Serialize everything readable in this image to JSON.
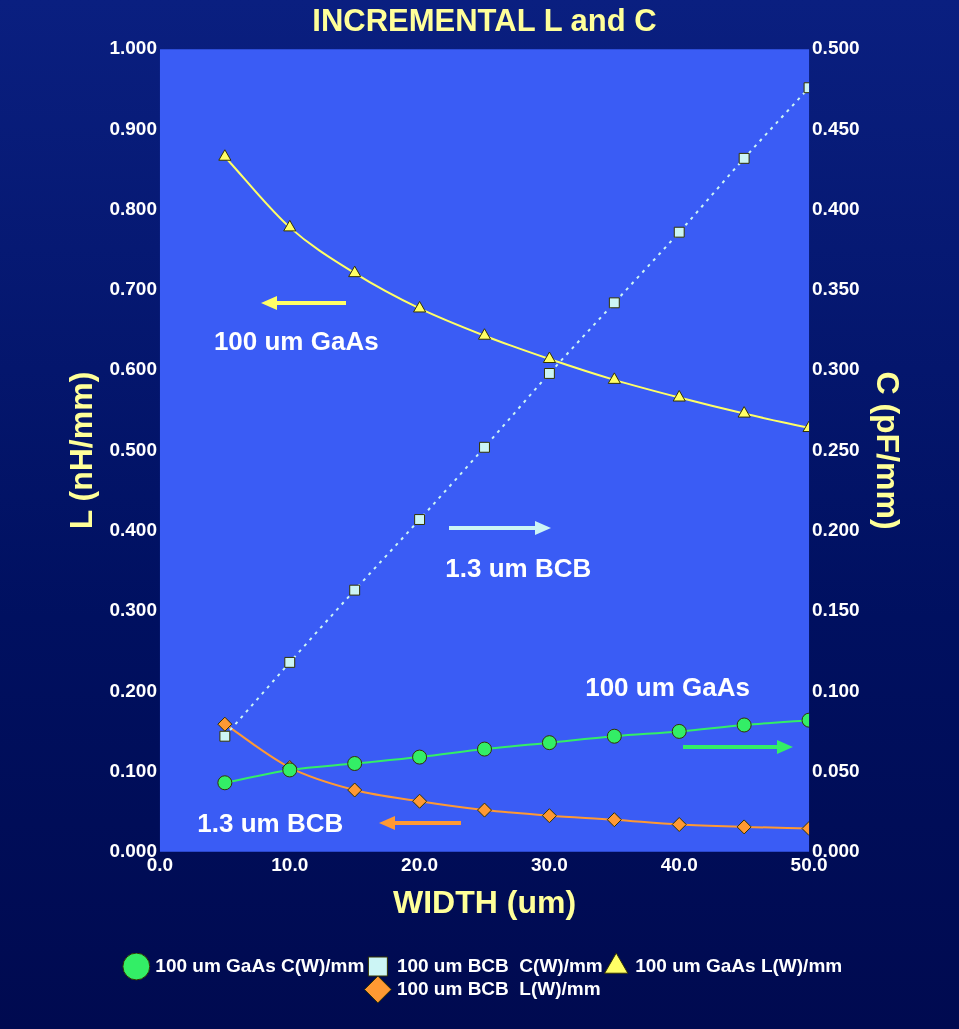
{
  "chart_data": {
    "type": "line",
    "title": "INCREMENTAL L and C",
    "xlabel": "WIDTH (um)",
    "ylabel": "L (nH/mm)",
    "y2label": "C (pF/mm)",
    "x": [
      5,
      10,
      15,
      20,
      25,
      30,
      35,
      40,
      45,
      50
    ],
    "series": [
      {
        "name": "100 um GaAs L(W)/mm",
        "color": "#ffff66",
        "marker": "triangle",
        "line_style": "solid",
        "values": [
          0.866,
          0.778,
          0.721,
          0.677,
          0.643,
          0.614,
          0.588,
          0.566,
          0.546,
          0.528
        ]
      },
      {
        "name": "100 um BCB  L(W)/mm",
        "color": "#ff9933",
        "marker": "diamond",
        "line_style": "solid",
        "values": [
          0.159,
          0.105,
          0.077,
          0.063,
          0.052,
          0.045,
          0.04,
          0.034,
          0.031,
          0.029
        ]
      },
      {
        "name": "100 um GaAs C(W)/mm",
        "color": "#33ee66",
        "marker": "circle",
        "line_style": "solid",
        "axis": "y2",
        "values": [
          0.043,
          0.051,
          0.055,
          0.059,
          0.064,
          0.068,
          0.072,
          0.075,
          0.079,
          0.082
        ]
      },
      {
        "name": "100 um BCB  C(W)/mm",
        "color": "#ccf5f5",
        "marker": "square",
        "line_style": "dotted",
        "axis": "y2",
        "values": [
          0.072,
          0.118,
          0.163,
          0.207,
          0.252,
          0.298,
          0.342,
          0.386,
          0.432,
          0.476
        ]
      }
    ],
    "xlim": [
      0,
      50
    ],
    "xticks": [
      {
        "value": 0,
        "label": "0.0"
      },
      {
        "value": 10,
        "label": "10.0"
      },
      {
        "value": 20,
        "label": "20.0"
      },
      {
        "value": 30,
        "label": "30.0"
      },
      {
        "value": 40,
        "label": "40.0"
      },
      {
        "value": 50,
        "label": "50.0"
      }
    ],
    "ylim": [
      0,
      1
    ],
    "yticks": [
      {
        "value": 0,
        "label": "0.000"
      },
      {
        "value": 0.1,
        "label": "0.100"
      },
      {
        "value": 0.2,
        "label": "0.200"
      },
      {
        "value": 0.3,
        "label": "0.300"
      },
      {
        "value": 0.4,
        "label": "0.400"
      },
      {
        "value": 0.5,
        "label": "0.500"
      },
      {
        "value": 0.6,
        "label": "0.600"
      },
      {
        "value": 0.7,
        "label": "0.700"
      },
      {
        "value": 0.8,
        "label": "0.800"
      },
      {
        "value": 0.9,
        "label": "0.900"
      },
      {
        "value": 1,
        "label": "1.000"
      }
    ],
    "y2lim": [
      0,
      0.5
    ],
    "y2ticks": [
      {
        "value": 0,
        "label": "0.000"
      },
      {
        "value": 0.05,
        "label": "0.050"
      },
      {
        "value": 0.1,
        "label": "0.100"
      },
      {
        "value": 0.15,
        "label": "0.150"
      },
      {
        "value": 0.2,
        "label": "0.200"
      },
      {
        "value": 0.25,
        "label": "0.250"
      },
      {
        "value": 0.3,
        "label": "0.300"
      },
      {
        "value": 0.35,
        "label": "0.350"
      },
      {
        "value": 0.4,
        "label": "0.400"
      },
      {
        "value": 0.45,
        "label": "0.450"
      },
      {
        "value": 0.5,
        "label": "0.500"
      }
    ],
    "annotations": [
      "100 um GaAs",
      "1.3 um BCB",
      "100 um GaAs",
      "1.3 um BCB"
    ],
    "grid": false,
    "legend": "bottom"
  }
}
